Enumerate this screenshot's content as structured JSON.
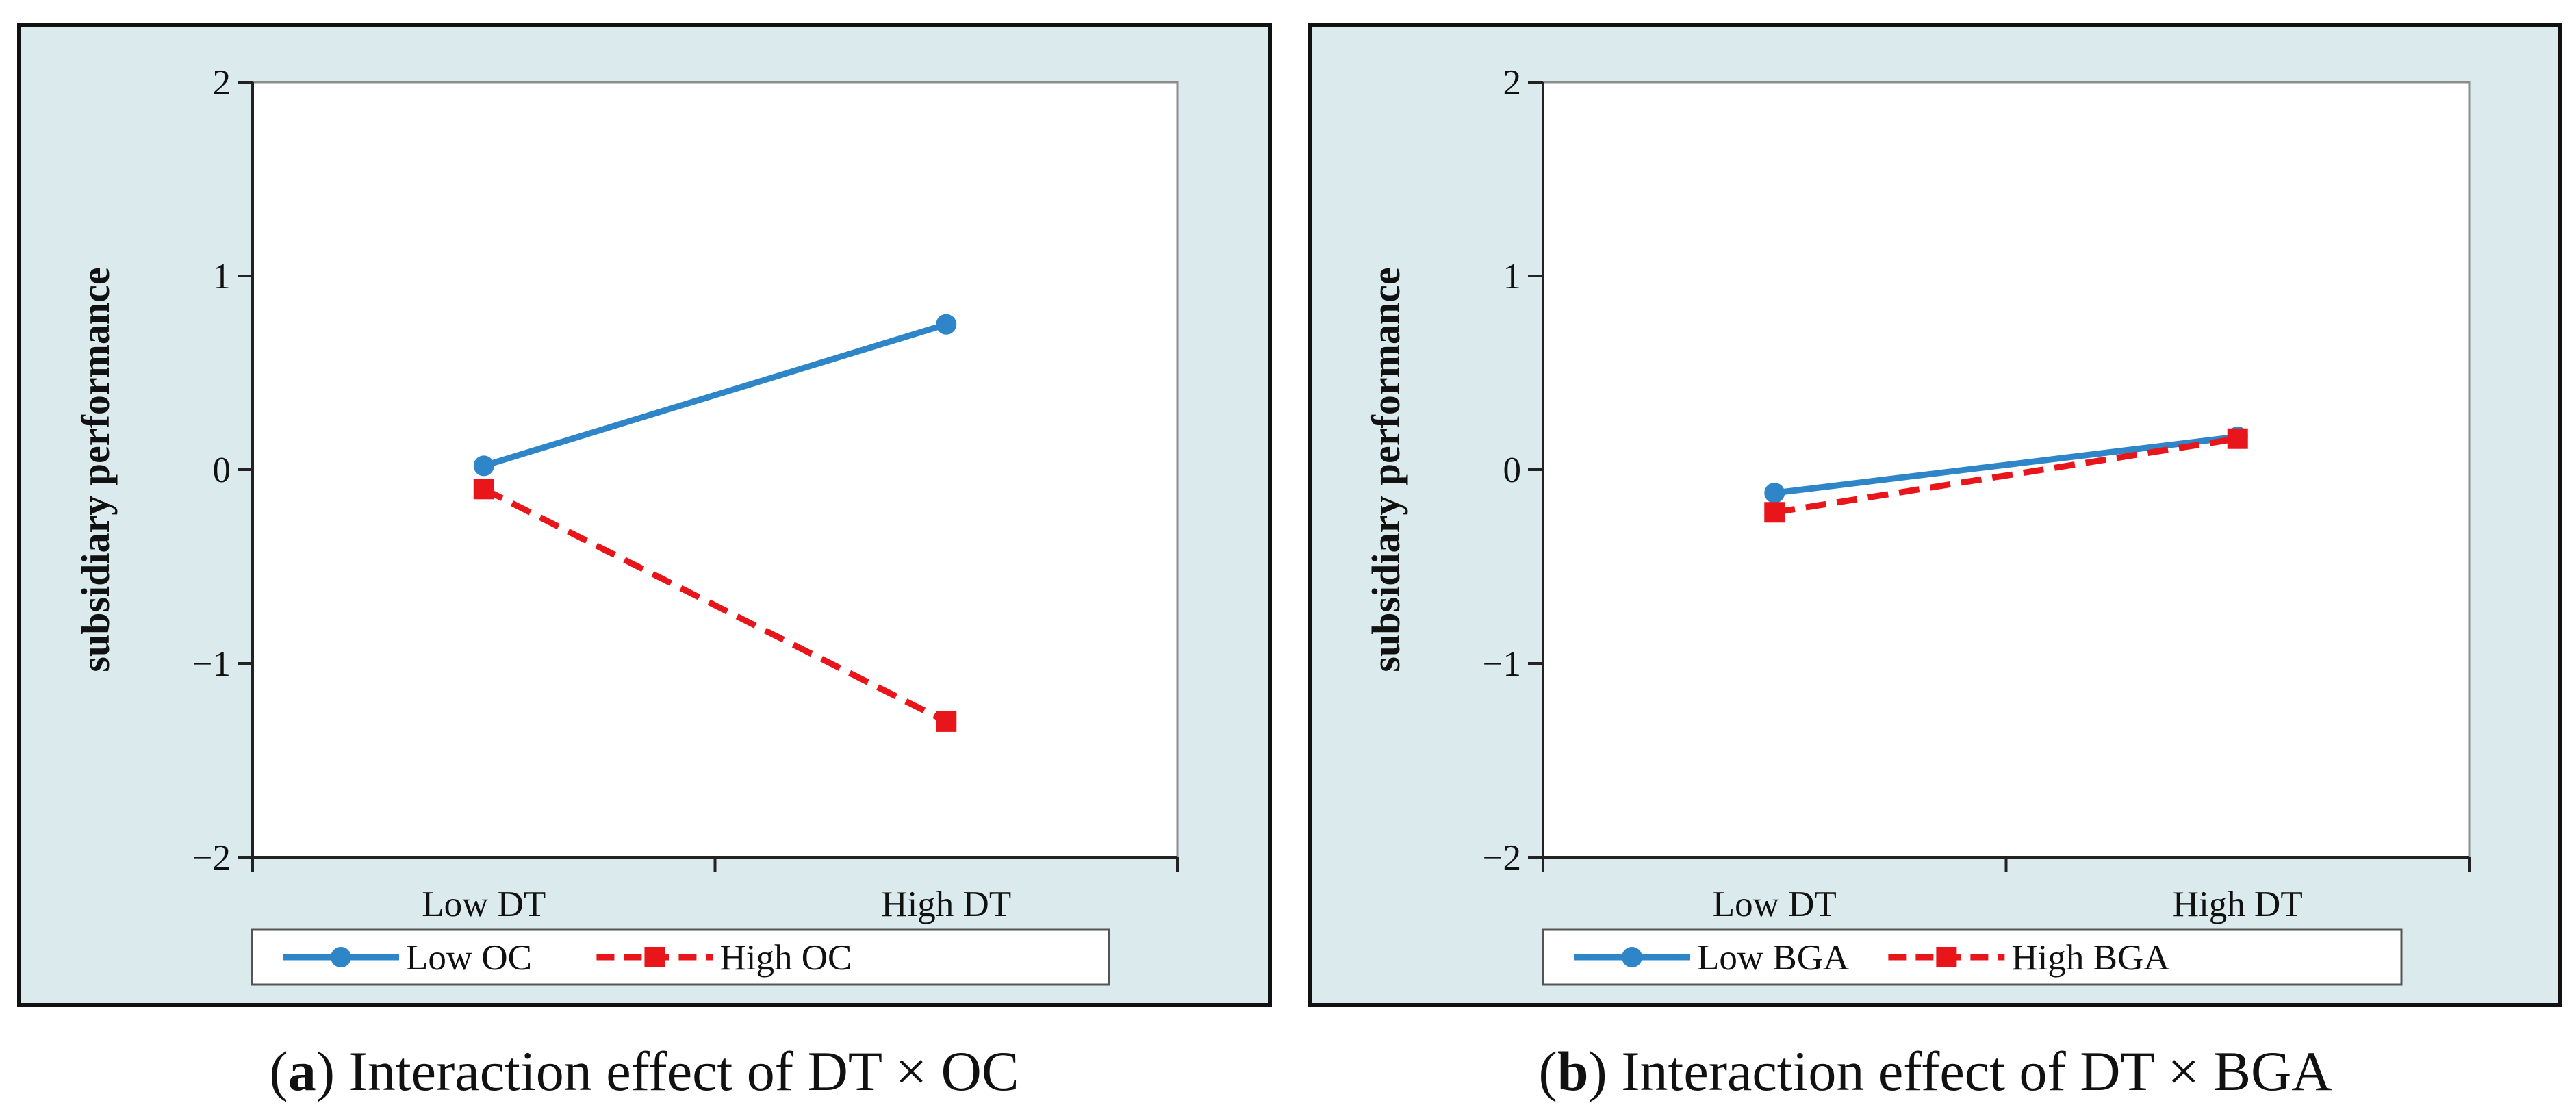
{
  "chart_data": [
    {
      "type": "line",
      "panel_letter": "a",
      "caption": "Interaction effect of DT × OC",
      "xlabel": "",
      "ylabel": "subsidiary performance",
      "categories": [
        "Low DT",
        "High DT"
      ],
      "ylim": [
        -2,
        2
      ],
      "yticks": [
        -2,
        -1,
        0,
        1,
        2
      ],
      "ytick_labels": [
        "−2",
        "−1",
        "0",
        "1",
        "2"
      ],
      "grid": false,
      "legend_position": "bottom",
      "series": [
        {
          "name": "Low OC",
          "values": [
            0.02,
            0.75
          ],
          "color": "#2e86c8",
          "dash": "solid",
          "marker": "circle"
        },
        {
          "name": "High OC",
          "values": [
            -0.1,
            -1.3
          ],
          "color": "#e8161b",
          "dash": "dashed",
          "marker": "square"
        }
      ]
    },
    {
      "type": "line",
      "panel_letter": "b",
      "caption": "Interaction effect of DT × BGA",
      "xlabel": "",
      "ylabel": "subsidiary performance",
      "categories": [
        "Low DT",
        "High DT"
      ],
      "ylim": [
        -2,
        2
      ],
      "yticks": [
        -2,
        -1,
        0,
        1,
        2
      ],
      "ytick_labels": [
        "−2",
        "−1",
        "0",
        "1",
        "2"
      ],
      "grid": false,
      "legend_position": "bottom",
      "series": [
        {
          "name": "Low BGA",
          "values": [
            -0.12,
            0.17
          ],
          "color": "#2e86c8",
          "dash": "solid",
          "marker": "circle"
        },
        {
          "name": "High BGA",
          "values": [
            -0.22,
            0.16
          ],
          "color": "#e8161b",
          "dash": "dashed",
          "marker": "square"
        }
      ]
    }
  ],
  "colors": {
    "panel_background": "#dbeaec",
    "plot_background": "#ffffff",
    "frame": "#111111"
  }
}
